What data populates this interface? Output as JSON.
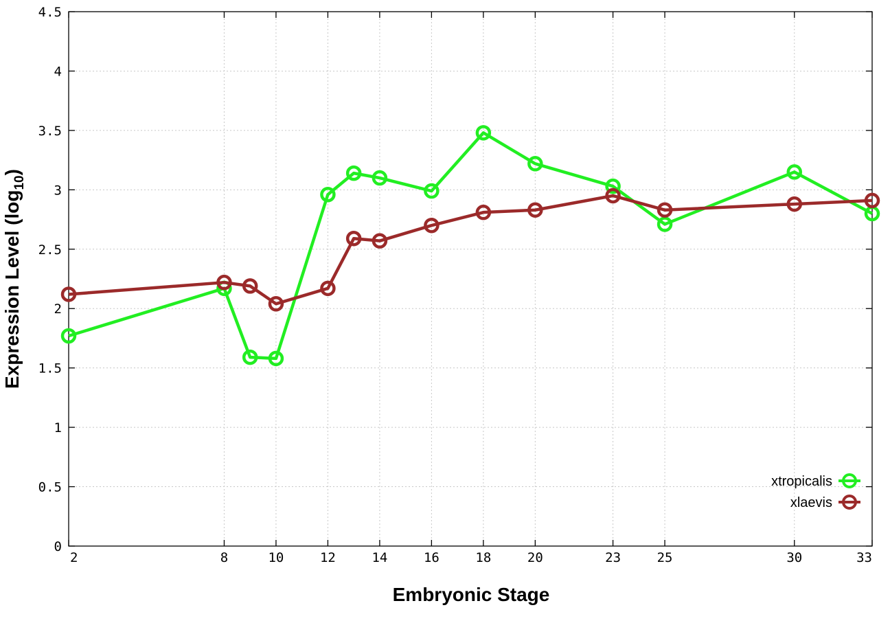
{
  "chart_data": {
    "type": "line",
    "xlabel": "Embryonic Stage",
    "ylabel_main": "Expression Level (log",
    "ylabel_sub": "10",
    "ylabel_close": ")",
    "x": [
      2,
      8,
      9,
      10,
      12,
      13,
      14,
      16,
      18,
      20,
      23,
      25,
      30,
      33
    ],
    "x_tick_values": [
      2,
      8,
      10,
      12,
      14,
      16,
      18,
      20,
      23,
      25,
      30,
      33
    ],
    "x_tick_labels": [
      "2",
      "8",
      "10",
      "12",
      "14",
      "16",
      "18",
      "20",
      "23",
      "25",
      "30",
      "33"
    ],
    "xlim": [
      2,
      33
    ],
    "y_tick_values": [
      0,
      0.5,
      1,
      1.5,
      2,
      2.5,
      3,
      3.5,
      4,
      4.5
    ],
    "y_tick_labels": [
      "0",
      "0.5",
      "1",
      "1.5",
      "2",
      "2.5",
      "3",
      "3.5",
      "4",
      "4.5"
    ],
    "ylim": [
      0,
      4.5
    ],
    "grid": true,
    "legend_position": "bottom-right",
    "series": [
      {
        "name": "xtropicalis",
        "color": "#22ee22",
        "marker": "open-circle",
        "values": [
          1.77,
          2.17,
          1.59,
          1.58,
          2.96,
          3.14,
          3.1,
          2.99,
          3.48,
          3.22,
          3.03,
          2.71,
          3.15,
          2.8
        ]
      },
      {
        "name": "xlaevis",
        "color": "#9b2a2a",
        "marker": "open-circle",
        "values": [
          2.12,
          2.22,
          2.19,
          2.04,
          2.17,
          2.59,
          2.57,
          2.7,
          2.81,
          2.83,
          2.95,
          2.83,
          2.88,
          2.91
        ]
      }
    ]
  }
}
